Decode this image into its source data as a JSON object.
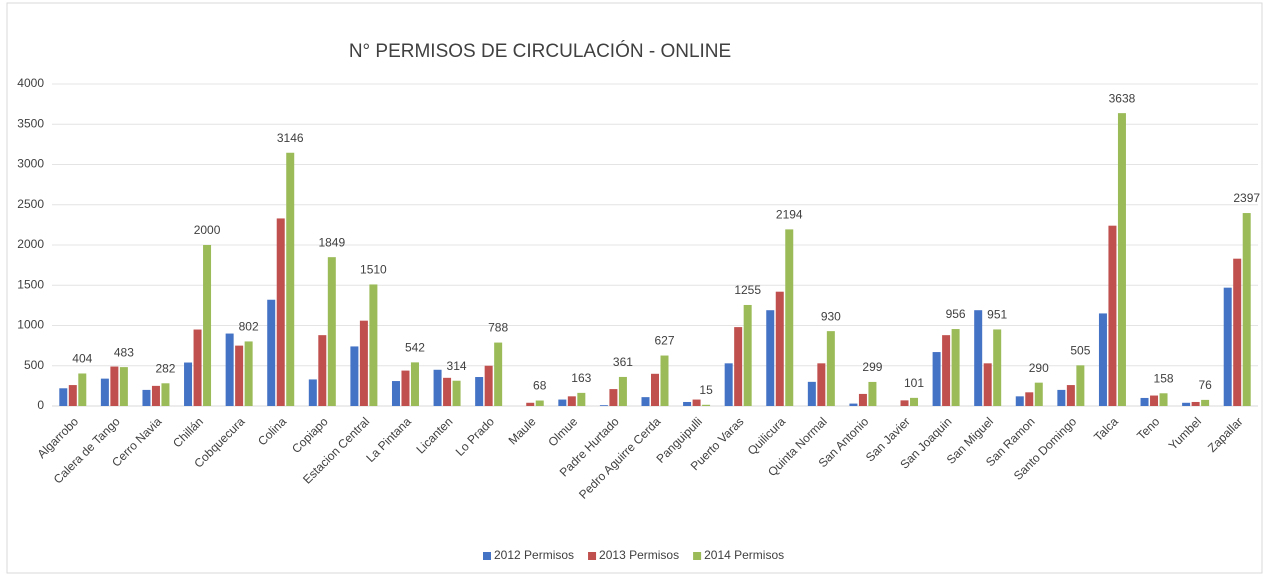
{
  "chart_data": {
    "type": "bar",
    "title": "N° PERMISOS DE CIRCULACIÓN - ONLINE",
    "categories": [
      "Algarrobo",
      "Calera de Tango",
      "Cerro Navia",
      "Chillán",
      "Cobquecura",
      "Colina",
      "Copiapo",
      "Estacion Central",
      "La Pintana",
      "Licanten",
      "Lo Prado",
      "Maule",
      "Olmue",
      "Padre Hurtado",
      "Pedro Aguirre Cerda",
      "Panguipulli",
      "Puerto Varas",
      "Quilicura",
      "Quinta Normal",
      "San Antonio",
      "San Javier",
      "San Joaquin",
      "San Miguel",
      "San Ramon",
      "Santo Domingo",
      "Talca",
      "Teno",
      "Yumbel",
      "Zapallar"
    ],
    "series": [
      {
        "name": "2012 Permisos",
        "color": "#4472c4",
        "values": [
          220,
          340,
          200,
          540,
          900,
          1320,
          330,
          740,
          310,
          450,
          360,
          0,
          80,
          10,
          110,
          50,
          530,
          1190,
          300,
          30,
          0,
          670,
          1190,
          120,
          200,
          1150,
          100,
          40,
          1470
        ]
      },
      {
        "name": "2013 Permisos",
        "color": "#c0504d",
        "values": [
          260,
          490,
          250,
          950,
          750,
          2330,
          880,
          1060,
          440,
          350,
          500,
          40,
          120,
          210,
          400,
          80,
          980,
          1420,
          530,
          150,
          70,
          880,
          530,
          170,
          260,
          2240,
          130,
          50,
          1830
        ]
      },
      {
        "name": "2014 Permisos",
        "color": "#9bbb59",
        "show_labels": true,
        "values": [
          404,
          483,
          282,
          2000,
          802,
          3146,
          1849,
          1510,
          542,
          314,
          788,
          68,
          163,
          361,
          627,
          15,
          1255,
          2194,
          930,
          299,
          101,
          956,
          951,
          290,
          505,
          3638,
          158,
          76,
          2397
        ]
      }
    ],
    "ylim": [
      0,
      4000
    ],
    "yticks": [
      0,
      500,
      1000,
      1500,
      2000,
      2500,
      3000,
      3500,
      4000
    ],
    "grid": true,
    "legend": "bottom"
  }
}
